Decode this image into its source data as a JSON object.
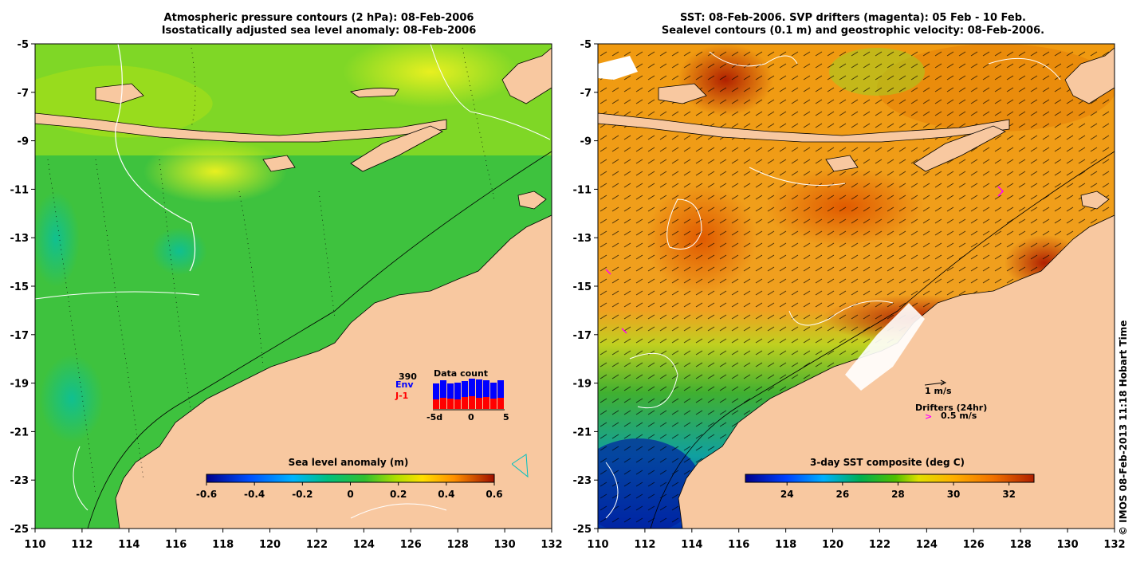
{
  "left_panel": {
    "title_line1": "Atmospheric pressure contours (2 hPa): 08-Feb-2006",
    "title_line2": "Isostatically adjusted sea level anomaly: 08-Feb-2006",
    "colorbar": {
      "title": "Sea level anomaly (m)",
      "ticks": [
        "-0.6",
        "-0.4",
        "-0.2",
        "0",
        "0.2",
        "0.4",
        "0.6"
      ],
      "range": [
        -0.6,
        0.6
      ]
    },
    "data_count": {
      "title": "Data count",
      "number": "390",
      "label_env": "Env",
      "label_j1": "J-1",
      "axis_labels": [
        "-5d",
        "0",
        "5"
      ],
      "env_color": "#0000ff",
      "j1_color": "#ff0000"
    }
  },
  "right_panel": {
    "title_line1": "SST: 08-Feb-2006. SVP drifters (magenta): 05 Feb - 10 Feb.",
    "title_line2": "Sealevel contours (0.1 m) and geostrophic velocity: 08-Feb-2006.",
    "colorbar": {
      "title": "3-day SST composite (deg C)",
      "ticks": [
        "24",
        "26",
        "28",
        "30",
        "32"
      ],
      "range": [
        22.5,
        32.9
      ]
    },
    "velocity_legend": "1 m/s",
    "drifter_legend_title": "Drifters (24hr)",
    "drifter_legend_speed": "0.5 m/s",
    "drifter_color": "#ff00ff"
  },
  "axes": {
    "lon_ticks": [
      "110",
      "112",
      "114",
      "116",
      "118",
      "120",
      "122",
      "124",
      "126",
      "128",
      "130",
      "132"
    ],
    "lat_ticks": [
      "-5",
      "-7",
      "-9",
      "-11",
      "-13",
      "-15",
      "-17",
      "-19",
      "-21",
      "-23",
      "-25"
    ],
    "lon_range": [
      110,
      132
    ],
    "lat_range": [
      -25,
      -5
    ]
  },
  "credit": "© IMOS 08-Feb-2013 11:18 Hobart Time",
  "colors": {
    "land": "#f8c8a0",
    "sla_low": "#0000a0",
    "sla_high": "#a00000",
    "sst_low": "#00008b",
    "sst_high": "#a00000"
  }
}
